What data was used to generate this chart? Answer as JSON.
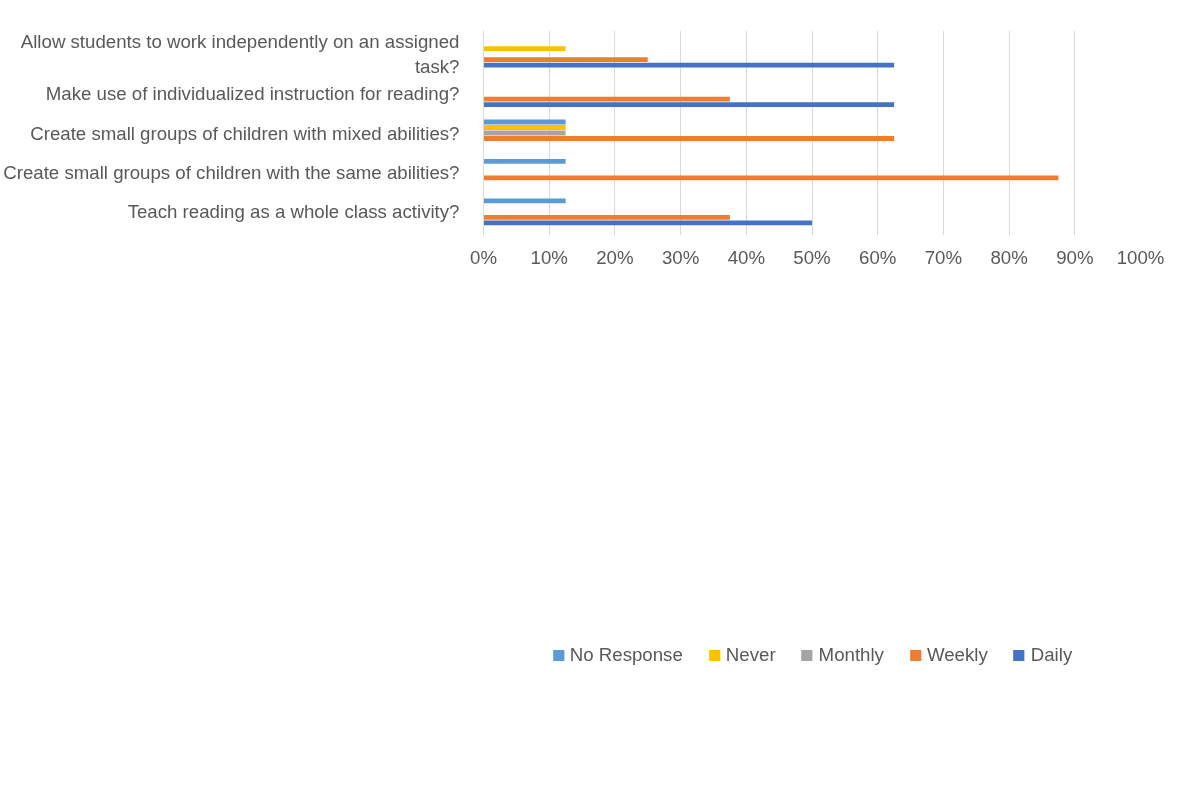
{
  "chart_data": {
    "type": "bar",
    "orientation": "horizontal",
    "categories": [
      "Allow students to work independently on an assigned task?",
      "Make use of individualized instruction for reading?",
      "Create small groups of children with mixed abilities?",
      "Create small groups of children with the same abilities?",
      "Teach reading as a whole class activity?"
    ],
    "series": [
      {
        "name": "No Response",
        "color": "#5b9bd5",
        "values": [
          null,
          null,
          12.5,
          12.5,
          12.5
        ]
      },
      {
        "name": "Never",
        "color": "#ffc000",
        "values": [
          12.5,
          null,
          12.5,
          null,
          null
        ]
      },
      {
        "name": "Monthly",
        "color": "#a5a5a5",
        "values": [
          null,
          null,
          12.5,
          null,
          null
        ]
      },
      {
        "name": "Weekly",
        "color": "#ed7d31",
        "values": [
          25,
          37.5,
          62.5,
          87.5,
          37.5
        ]
      },
      {
        "name": "Daily",
        "color": "#4472c4",
        "values": [
          62.5,
          62.5,
          null,
          null,
          50
        ]
      }
    ],
    "xlim": [
      0,
      100
    ],
    "xticks": [
      {
        "value": 0,
        "label": "0%"
      },
      {
        "value": 10,
        "label": "10%"
      },
      {
        "value": 20,
        "label": "20%"
      },
      {
        "value": 30,
        "label": "30%"
      },
      {
        "value": 40,
        "label": "40%"
      },
      {
        "value": 50,
        "label": "50%"
      },
      {
        "value": 60,
        "label": "60%"
      },
      {
        "value": 70,
        "label": "70%"
      },
      {
        "value": 80,
        "label": "80%"
      },
      {
        "value": 90,
        "label": "90%"
      },
      {
        "value": 100,
        "label": "100%"
      }
    ],
    "grid": "x",
    "legend": "bottom"
  }
}
